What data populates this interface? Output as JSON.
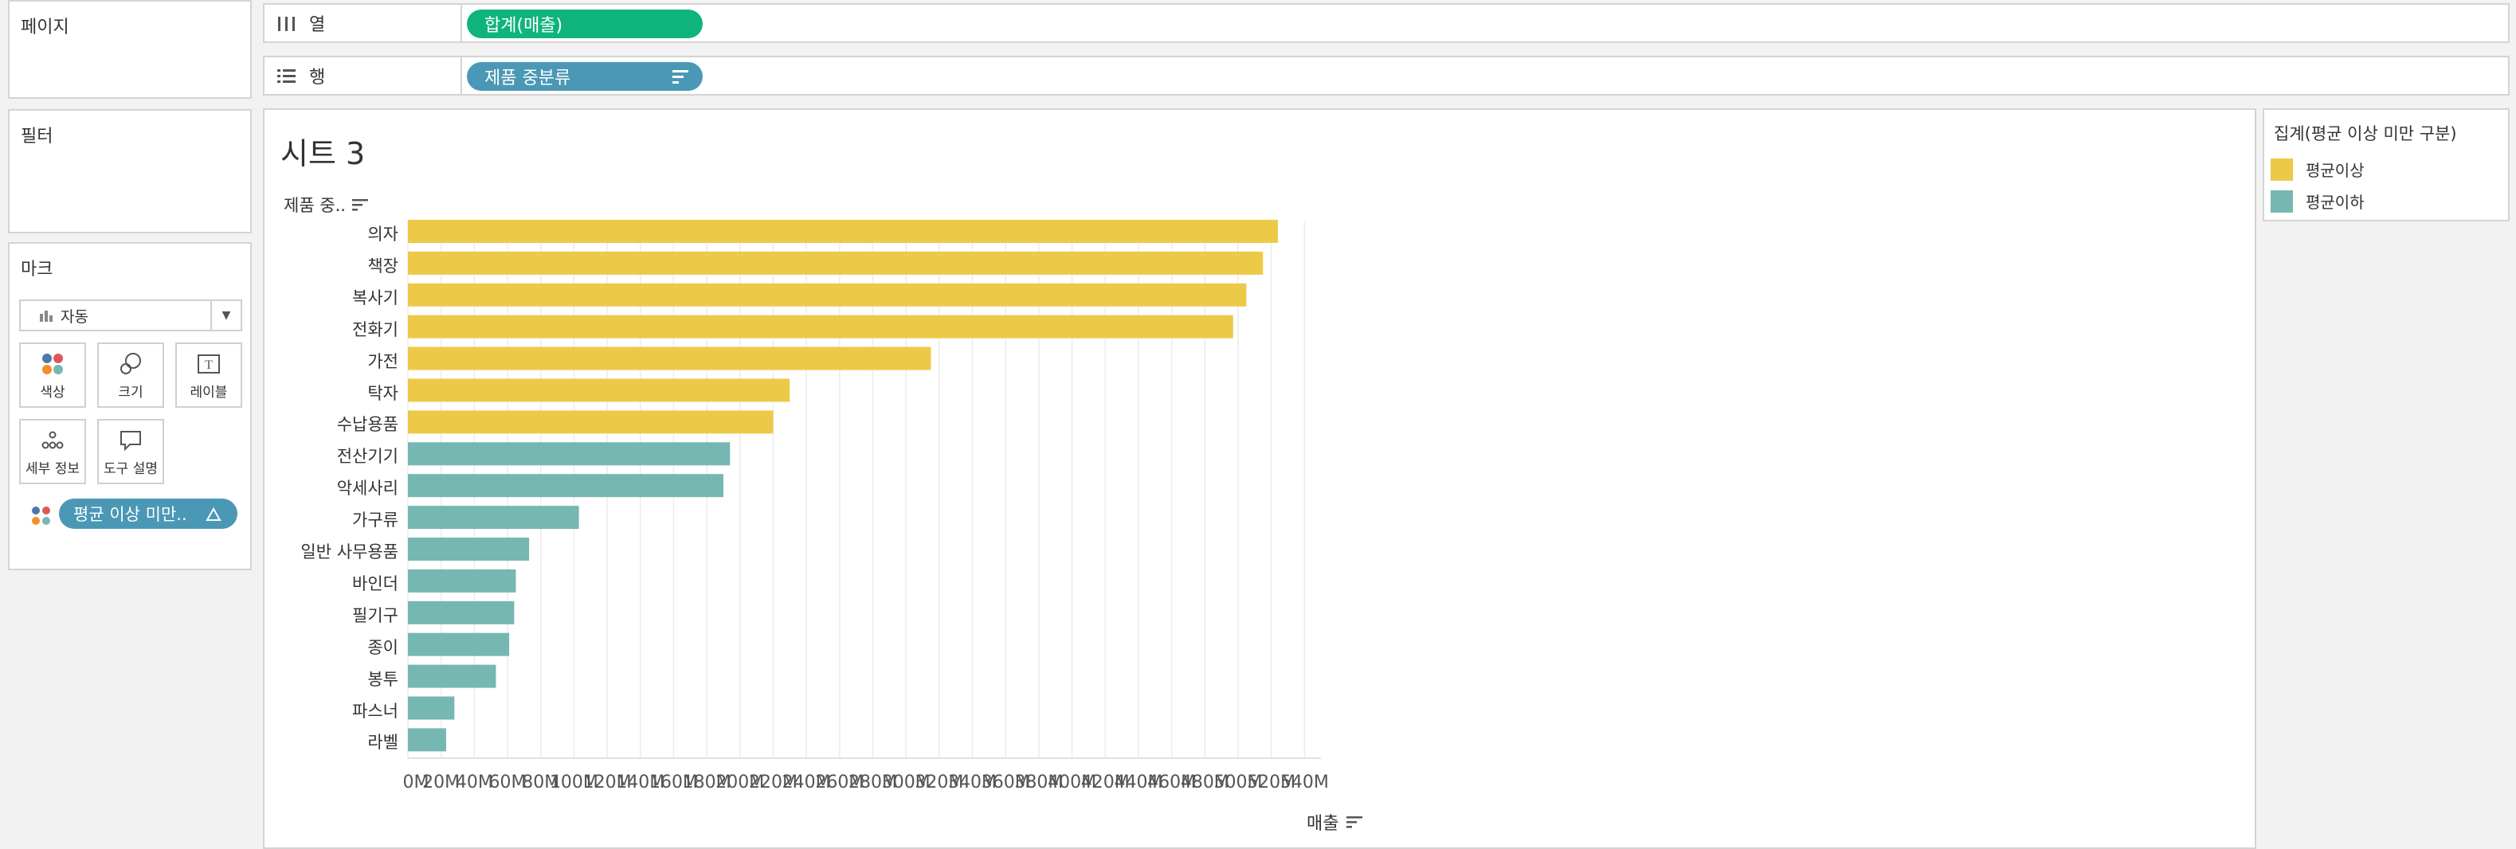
{
  "pages_panel": {
    "title": "페이지"
  },
  "filters_panel": {
    "title": "필터"
  },
  "marks_panel": {
    "title": "마크",
    "mark_type": "자동",
    "buttons": [
      "색상",
      "크기",
      "레이블",
      "세부 정보",
      "도구 설명"
    ],
    "color_pill": "평균 이상 미만.."
  },
  "columns_shelf": {
    "label": "열",
    "pill": "합계(매출)"
  },
  "rows_shelf": {
    "label": "행",
    "pill": "제품 중분류"
  },
  "sheet": {
    "title": "시트 3",
    "row_header": "제품 중.."
  },
  "legend": {
    "title": "집계(평균 이상 미만 구분)",
    "items": [
      {
        "label": "평균이상",
        "color": "#edc948"
      },
      {
        "label": "평균이하",
        "color": "#76b7b2"
      }
    ]
  },
  "colors": {
    "above": "#edc948",
    "below": "#76b7b2",
    "green_pill": "#0fb47c",
    "blue_pill": "#4a98b5"
  },
  "chart_data": {
    "type": "bar",
    "orientation": "horizontal",
    "title": "시트 3",
    "xlabel": "매출",
    "ylabel": "제품 중분류",
    "xlim": [
      0,
      550
    ],
    "x_unit": "M",
    "ticks": [
      "0M",
      "20M",
      "40M",
      "60M",
      "80M",
      "100M",
      "120M",
      "140M",
      "160M",
      "180M",
      "200M",
      "220M",
      "240M",
      "260M",
      "280M",
      "300M",
      "320M",
      "340M",
      "360M",
      "380M",
      "400M",
      "420M",
      "440M",
      "460M",
      "480M",
      "500M",
      "520M",
      "540M"
    ],
    "categories": [
      "의자",
      "책장",
      "복사기",
      "전화기",
      "가전",
      "탁자",
      "수납용품",
      "전산기기",
      "악세사리",
      "가구류",
      "일반 사무용품",
      "바인더",
      "필기구",
      "종이",
      "봉투",
      "파스너",
      "라벨"
    ],
    "values": [
      524,
      515,
      505,
      497,
      315,
      230,
      220,
      194,
      190,
      103,
      73,
      65,
      64,
      61,
      53,
      28,
      23
    ],
    "groups": [
      "평균이상",
      "평균이상",
      "평균이상",
      "평균이상",
      "평균이상",
      "평균이상",
      "평균이상",
      "평균이하",
      "평균이하",
      "평균이하",
      "평균이하",
      "평균이하",
      "평균이하",
      "평균이하",
      "평균이하",
      "평균이하",
      "평균이하"
    ]
  }
}
